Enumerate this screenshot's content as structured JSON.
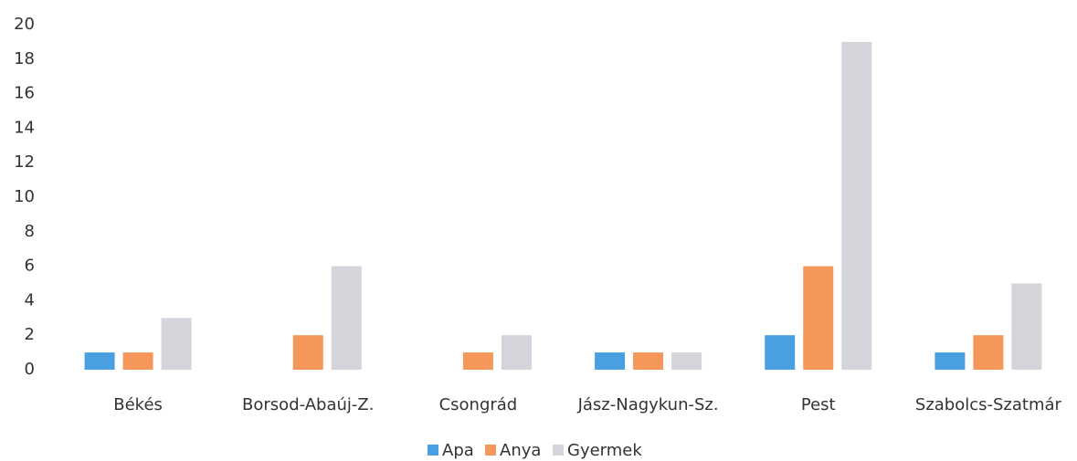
{
  "chart_data": {
    "type": "bar",
    "categories": [
      "Békés",
      "Borsod-Abaúj-Z.",
      "Csongrád",
      "Jász-Nagykun-Sz.",
      "Pest",
      "Szabolcs-Szatmár"
    ],
    "series": [
      {
        "name": "Apa",
        "color": "#4a9fe0",
        "values": [
          1,
          0,
          0,
          1,
          2,
          1
        ]
      },
      {
        "name": "Anya",
        "color": "#f5975a",
        "values": [
          1,
          2,
          1,
          1,
          6,
          2
        ]
      },
      {
        "name": "Gyermek",
        "color": "#d4d4db",
        "values": [
          3,
          6,
          2,
          1,
          19,
          5
        ]
      }
    ],
    "ylim": [
      0,
      20
    ],
    "yticks": [
      0,
      2,
      4,
      6,
      8,
      10,
      12,
      14,
      16,
      18,
      20
    ],
    "grid": false,
    "legend": "bottom"
  }
}
